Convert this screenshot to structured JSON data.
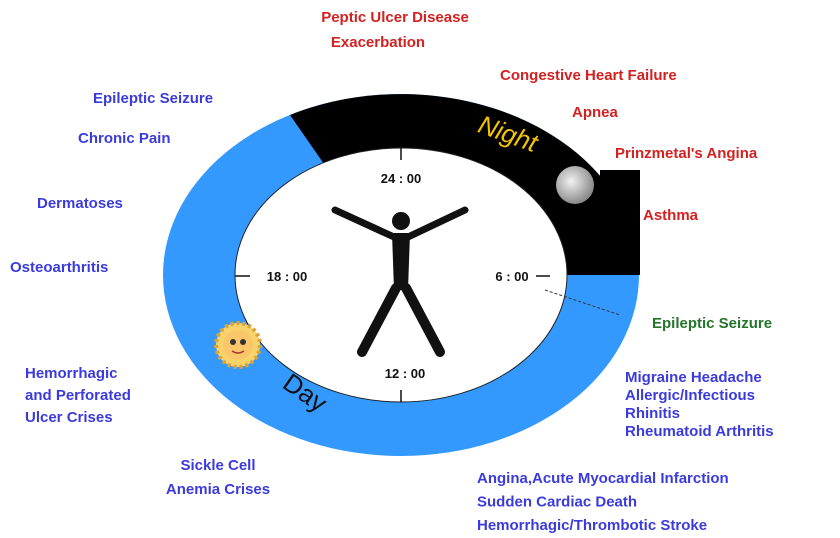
{
  "ring": {
    "night": "Night",
    "day": "Day",
    "times": [
      "24 : 00",
      "6 : 00",
      "12 : 00",
      "18 : 00"
    ]
  },
  "night_conditions": [
    [
      "Peptic Ulcer Disease",
      "Exacerbation"
    ],
    [
      "Congestive Heart Failure"
    ],
    [
      "Apnea"
    ],
    [
      "Prinzmetal's Angina"
    ],
    [
      "Asthma"
    ]
  ],
  "day_left_conditions": [
    [
      "Epileptic Seizure"
    ],
    [
      "Chronic Pain"
    ],
    [
      "Dermatoses"
    ],
    [
      "Osteoarthritis"
    ],
    [
      "Hemorrhagic",
      "and Perforated",
      "Ulcer Crises"
    ],
    [
      "Sickle Cell",
      "Anemia Crises"
    ]
  ],
  "morning_conditions": [
    [
      "Epileptic Seizure"
    ]
  ],
  "day_right_conditions": [
    [
      "Migraine Headache",
      "Allergic/Infectious",
      "Rhinitis",
      "Rheumatoid Arthritis"
    ],
    [
      "Angina,Acute Myocardial Infarction",
      "Sudden Cardiac Death",
      "Hemorrhagic/Thrombotic Stroke"
    ]
  ]
}
